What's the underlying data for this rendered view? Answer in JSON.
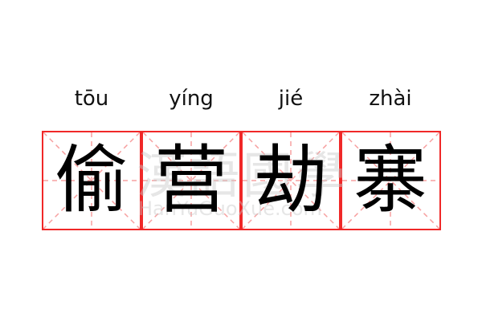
{
  "idiom": [
    {
      "pinyin": "tōu",
      "char": "偷"
    },
    {
      "pinyin": "yíng",
      "char": "营"
    },
    {
      "pinyin": "jié",
      "char": "劫"
    },
    {
      "pinyin": "zhài",
      "char": "寨"
    }
  ],
  "watermark": {
    "chinese": "漢語國學",
    "latin": "HanYuGuoXue.com"
  },
  "colors": {
    "grid_border": "#f02828",
    "grid_guides": "#f7a0a0",
    "text": "#000000"
  }
}
